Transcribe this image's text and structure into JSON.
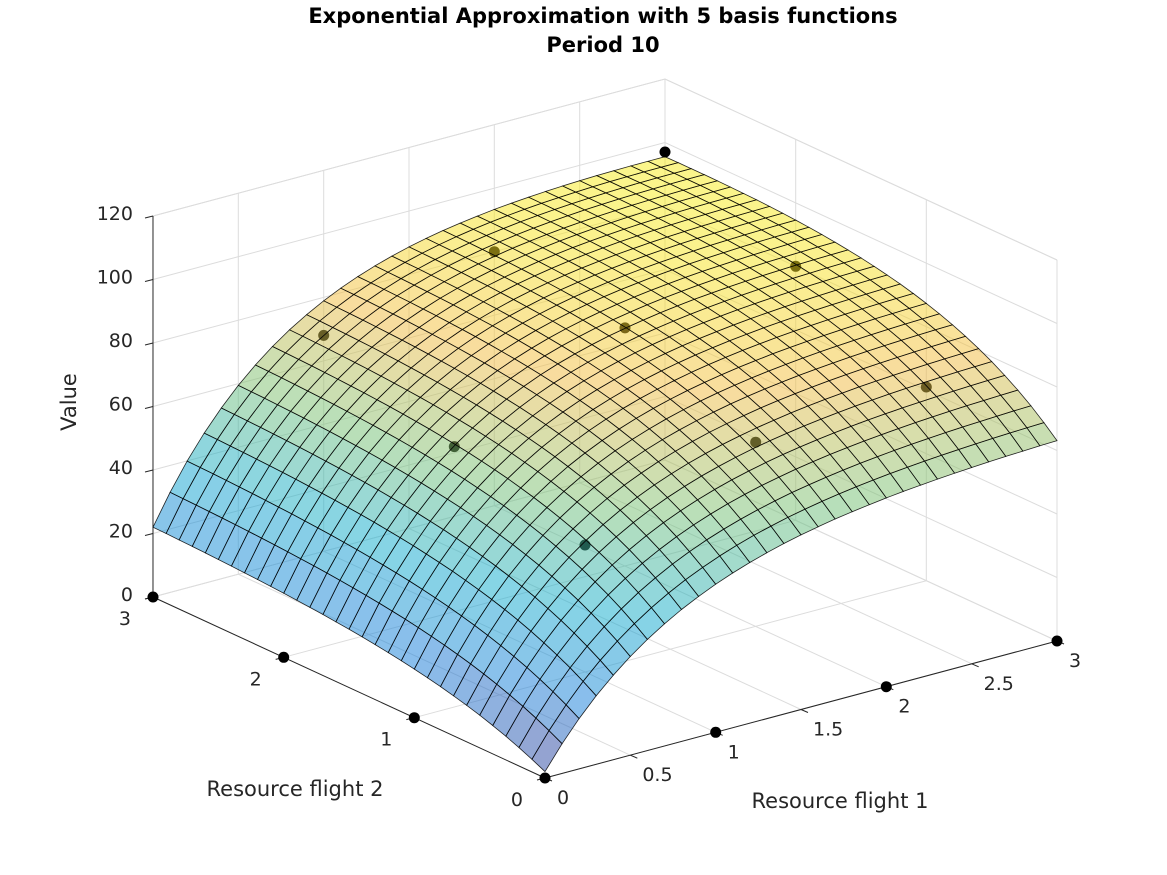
{
  "chart_data": {
    "type": "surface",
    "title": "Exponential Approximation with 5 basis functions",
    "subtitle": "Period 10",
    "xlabel": "Resource flight 1",
    "ylabel": "Resource flight 2",
    "zlabel": "Value",
    "xlim": [
      0,
      3
    ],
    "ylim": [
      0,
      3
    ],
    "zlim": [
      0,
      120
    ],
    "xticks": [
      "0",
      "0.5",
      "1",
      "1.5",
      "2",
      "2.5",
      "3"
    ],
    "yticks": [
      "0",
      "1",
      "2",
      "3"
    ],
    "zticks": [
      "0",
      "20",
      "40",
      "60",
      "80",
      "100",
      "120"
    ],
    "grid": true,
    "colormap": "parula",
    "surface_alpha": 0.5,
    "surface": {
      "x_range": [
        0,
        3
      ],
      "y_range": [
        0,
        3
      ],
      "approx_values": [
        {
          "x": 0,
          "y": 0,
          "z": 0
        },
        {
          "x": 3,
          "y": 0,
          "z": 63
        },
        {
          "x": 0,
          "y": 3,
          "z": 20
        },
        {
          "x": 3,
          "y": 3,
          "z": 98
        },
        {
          "x": 1.5,
          "y": 1.5,
          "z": 90
        }
      ]
    },
    "points": [
      {
        "x": 0,
        "y": 0,
        "z": 0
      },
      {
        "x": 1,
        "y": 0,
        "z": 0
      },
      {
        "x": 2,
        "y": 0,
        "z": 0
      },
      {
        "x": 3,
        "y": 0,
        "z": 0
      },
      {
        "x": 0,
        "y": 1,
        "z": 0
      },
      {
        "x": 0,
        "y": 2,
        "z": 0
      },
      {
        "x": 0,
        "y": 3,
        "z": 0
      },
      {
        "x": 1,
        "y": 1,
        "z": 40
      },
      {
        "x": 2,
        "y": 1,
        "z": 58
      },
      {
        "x": 3,
        "y": 1,
        "z": 61
      },
      {
        "x": 1,
        "y": 2,
        "z": 52
      },
      {
        "x": 2,
        "y": 2,
        "z": 75
      },
      {
        "x": 3,
        "y": 2,
        "z": 80
      },
      {
        "x": 1,
        "y": 3,
        "z": 68
      },
      {
        "x": 2,
        "y": 3,
        "z": 80
      },
      {
        "x": 3,
        "y": 3,
        "z": 97
      }
    ]
  }
}
